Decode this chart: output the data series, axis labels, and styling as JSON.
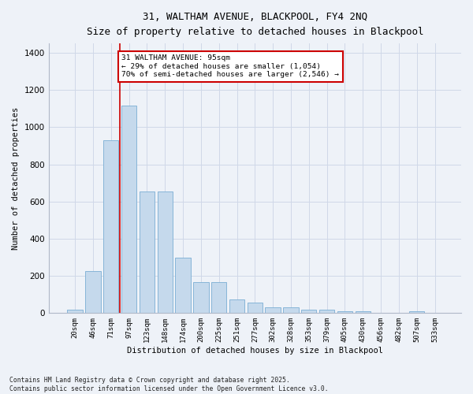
{
  "title_line1": "31, WALTHAM AVENUE, BLACKPOOL, FY4 2NQ",
  "title_line2": "Size of property relative to detached houses in Blackpool",
  "xlabel": "Distribution of detached houses by size in Blackpool",
  "ylabel": "Number of detached properties",
  "categories": [
    "20sqm",
    "46sqm",
    "71sqm",
    "97sqm",
    "123sqm",
    "148sqm",
    "174sqm",
    "200sqm",
    "225sqm",
    "251sqm",
    "277sqm",
    "302sqm",
    "328sqm",
    "353sqm",
    "379sqm",
    "405sqm",
    "430sqm",
    "456sqm",
    "482sqm",
    "507sqm",
    "533sqm"
  ],
  "values": [
    18,
    225,
    930,
    1115,
    655,
    655,
    300,
    165,
    165,
    75,
    55,
    30,
    30,
    18,
    18,
    12,
    12,
    0,
    0,
    8,
    0
  ],
  "bar_color": "#c5d9ec",
  "bar_edge_color": "#7aadd4",
  "grid_color": "#d0d8e8",
  "background_color": "#eef2f8",
  "redline_index": 3,
  "annotation_text": "31 WALTHAM AVENUE: 95sqm\n← 29% of detached houses are smaller (1,054)\n70% of semi-detached houses are larger (2,546) →",
  "annotation_box_color": "#ffffff",
  "annotation_box_edge": "#cc0000",
  "annotation_text_color": "#000000",
  "redline_color": "#cc0000",
  "ylim": [
    0,
    1450
  ],
  "yticks": [
    0,
    200,
    400,
    600,
    800,
    1000,
    1200,
    1400
  ],
  "footer": "Contains HM Land Registry data © Crown copyright and database right 2025.\nContains public sector information licensed under the Open Government Licence v3.0."
}
